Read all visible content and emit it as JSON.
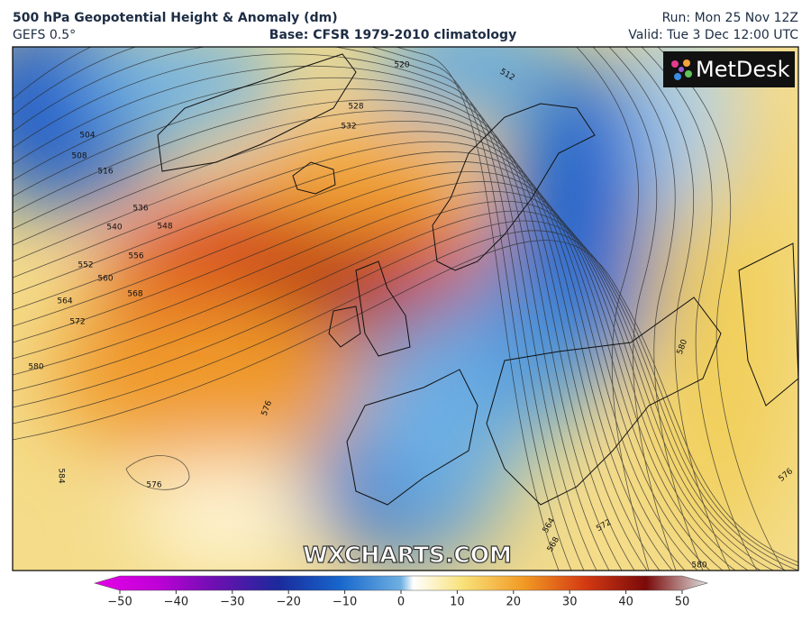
{
  "header": {
    "title": "500 hPa Geopotential Height & Anomaly (dm)",
    "model": "GEFS 0.5°",
    "base": "Base: CFSR 1979-2010 climatology",
    "run": "Run: Mon 25 Nov 12Z",
    "valid": "Valid: Tue 3 Dec 12:00 UTC"
  },
  "logo": "MetDesk",
  "watermark": "WXCHARTS.COM",
  "contour_labels": [
    504,
    508,
    516,
    536,
    540,
    548,
    552,
    556,
    560,
    564,
    568,
    572,
    580,
    584,
    576,
    576,
    520,
    512,
    528,
    532,
    564,
    568,
    572,
    576,
    580,
    580
  ],
  "colorbar": {
    "ticks": [
      {
        "value": -50,
        "label": "−50"
      },
      {
        "value": -40,
        "label": "−40"
      },
      {
        "value": -30,
        "label": "−30"
      },
      {
        "value": -20,
        "label": "−20"
      },
      {
        "value": -10,
        "label": "−10"
      },
      0,
      10,
      20,
      30,
      40,
      50
    ]
  }
}
